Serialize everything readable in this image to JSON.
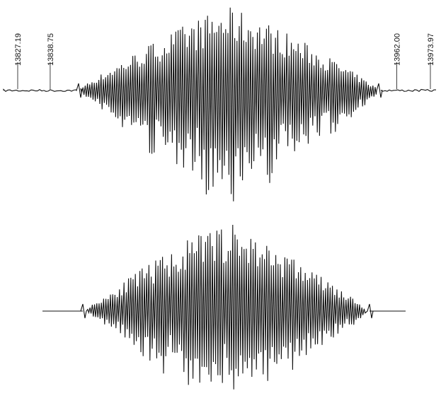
{
  "chart_data": {
    "type": "line",
    "title": "",
    "xlabel": "",
    "ylabel": "",
    "grid": false,
    "legend": "none",
    "panels": [
      {
        "name": "",
        "role": "experimental",
        "markers": [
          {
            "label": "13827.19",
            "x": 13827.19
          },
          {
            "label": "13838.75",
            "x": 13838.75
          },
          {
            "label": "13962.00",
            "x": 13962.0
          },
          {
            "label": "13973.97",
            "x": 13973.97
          }
        ]
      },
      {
        "name": "",
        "role": "simulated",
        "markers": []
      }
    ]
  },
  "colors": {
    "trace": "#111111",
    "background": "#ffffff"
  }
}
